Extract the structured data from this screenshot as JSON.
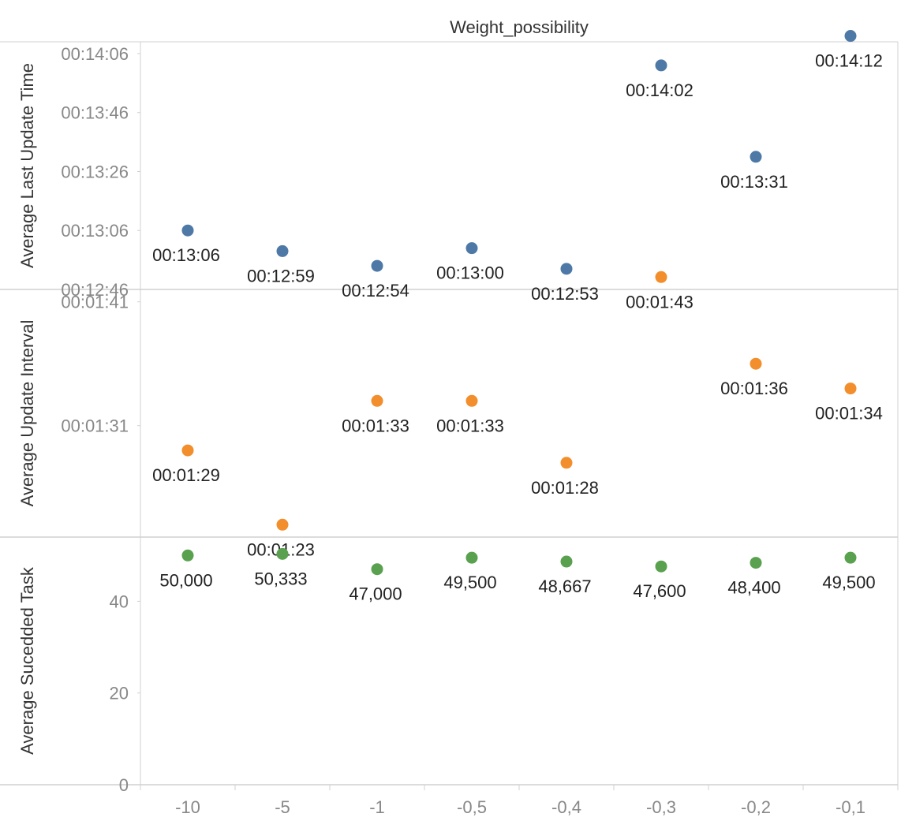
{
  "chart_data": {
    "type": "scatter",
    "title": "Weight_possibility",
    "categories": [
      "-10",
      "-5",
      "-1",
      "-0,5",
      "-0,4",
      "-0,3",
      "-0,2",
      "-0,1"
    ],
    "grid": false,
    "panels": [
      {
        "ylabel": "Average Last Update Time",
        "color": "#4e79a7",
        "value_format": "duration",
        "ylim_seconds": [
          766,
          850
        ],
        "yticks": [
          "00:12:46",
          "00:13:06",
          "00:13:26",
          "00:13:46",
          "00:14:06"
        ],
        "yticks_seconds": [
          766,
          786,
          806,
          826,
          846
        ],
        "values_seconds": [
          786,
          779,
          774,
          780,
          773,
          842,
          811,
          852
        ],
        "labels": [
          "00:13:06",
          "00:12:59",
          "00:12:54",
          "00:13:00",
          "00:12:53",
          "00:14:02",
          "00:13:31",
          "00:14:12"
        ]
      },
      {
        "ylabel": "Average Update Interval",
        "color": "#f28e2b",
        "value_format": "duration",
        "ylim_seconds": [
          82,
          102
        ],
        "yticks": [
          "00:01:31",
          "00:01:41"
        ],
        "yticks_seconds": [
          91,
          101
        ],
        "values_seconds": [
          89,
          83,
          93,
          93,
          88,
          103,
          96,
          94
        ],
        "labels": [
          "00:01:29",
          "00:01:23",
          "00:01:33",
          "00:01:33",
          "00:01:28",
          "00:01:43",
          "00:01:36",
          "00:01:34"
        ]
      },
      {
        "ylabel": "Average Sucedded Task",
        "color": "#59a14f",
        "value_format": "number",
        "ylim": [
          0,
          54
        ],
        "yticks": [
          "0",
          "20",
          "40"
        ],
        "yticks_values": [
          0,
          20,
          40
        ],
        "values": [
          50.0,
          50.333,
          47.0,
          49.5,
          48.667,
          47.6,
          48.4,
          49.5
        ],
        "labels": [
          "50,000",
          "50,333",
          "47,000",
          "49,500",
          "48,667",
          "47,600",
          "48,400",
          "49,500"
        ]
      }
    ]
  }
}
